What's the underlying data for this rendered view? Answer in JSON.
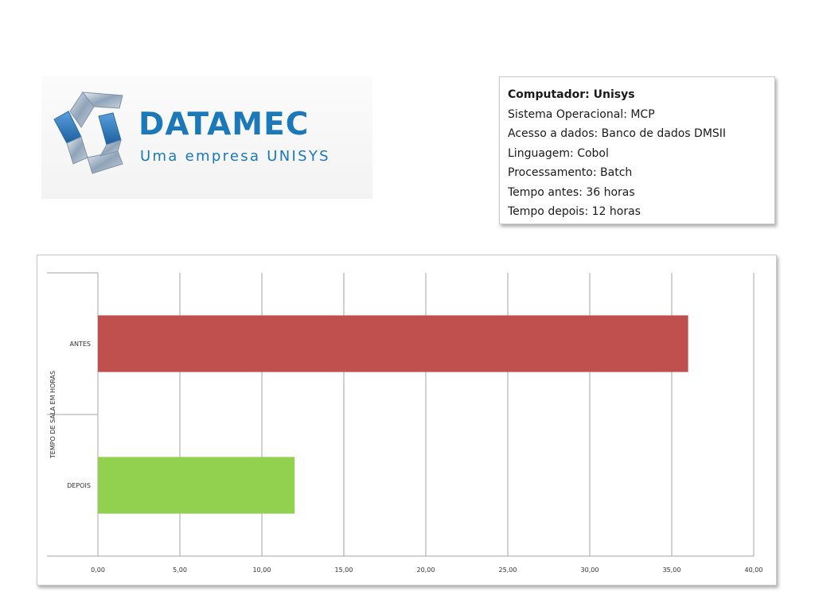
{
  "logo": {
    "name": "DATAMEC",
    "tagline": "Uma empresa UNISYS",
    "icon": "datamec-logo-mark",
    "brand_color": "#1b78b9"
  },
  "info": {
    "title": "Computador: Unisys",
    "lines": [
      "Sistema Operacional: MCP",
      "Acesso a dados: Banco de dados DMSII",
      "Linguagem: Cobol",
      "Processamento: Batch",
      "Tempo antes: 36 horas",
      "Tempo depois: 12 horas"
    ]
  },
  "chart_data": {
    "type": "bar",
    "orientation": "horizontal",
    "title": "",
    "xlabel": "",
    "ylabel": "TEMPO DE SALA EM HORAS",
    "categories": [
      "ANTES",
      "DEPOIS"
    ],
    "values": [
      36,
      12
    ],
    "colors": [
      "#c0504d",
      "#92d050"
    ],
    "xlim": [
      0,
      40
    ],
    "xticks": [
      "0,00",
      "5,00",
      "10,00",
      "15,00",
      "20,00",
      "25,00",
      "30,00",
      "35,00",
      "40,00"
    ],
    "grid": true,
    "legend": "none"
  }
}
